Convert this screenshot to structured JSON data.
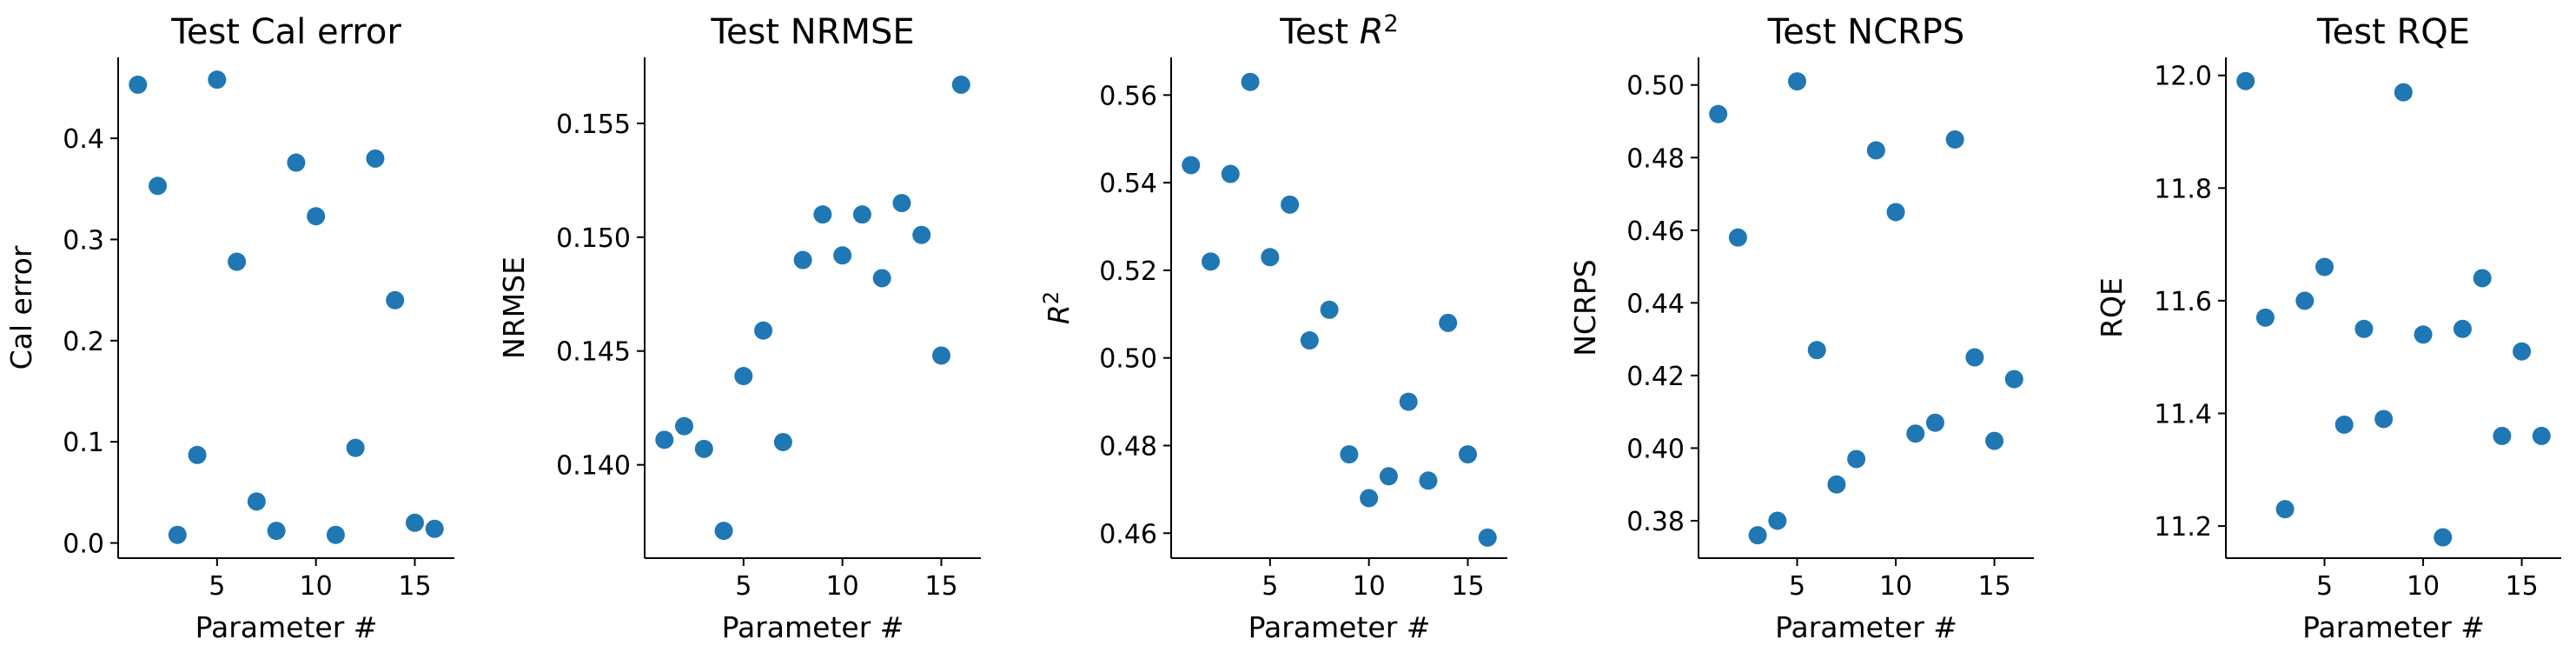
{
  "chart_data": [
    {
      "type": "scatter",
      "title": "Test Cal error",
      "xlabel": "Parameter #",
      "ylabel": "Cal error",
      "xlim": [
        0,
        17
      ],
      "ylim": [
        -0.015,
        0.48
      ],
      "xticks": [
        5,
        10,
        15
      ],
      "yticks": [
        0.0,
        0.1,
        0.2,
        0.3,
        0.4
      ],
      "ytick_labels": [
        "0.0",
        "0.1",
        "0.2",
        "0.3",
        "0.4"
      ],
      "series": [
        {
          "x": [
            1,
            2,
            3,
            4,
            5,
            6,
            7,
            8,
            9,
            10,
            11,
            12,
            13,
            14,
            15,
            16
          ],
          "y": [
            0.453,
            0.353,
            0.008,
            0.087,
            0.458,
            0.278,
            0.041,
            0.012,
            0.376,
            0.323,
            0.008,
            0.094,
            0.38,
            0.24,
            0.02,
            0.014
          ]
        }
      ]
    },
    {
      "type": "scatter",
      "title": "Test NRMSE",
      "xlabel": "Parameter #",
      "ylabel": "NRMSE",
      "xlim": [
        0,
        17
      ],
      "ylim": [
        0.1359,
        0.1579
      ],
      "xticks": [
        5,
        10,
        15
      ],
      "yticks": [
        0.14,
        0.145,
        0.15,
        0.155
      ],
      "ytick_labels": [
        "0.140",
        "0.145",
        "0.150",
        "0.155"
      ],
      "series": [
        {
          "x": [
            1,
            2,
            3,
            4,
            5,
            6,
            7,
            8,
            9,
            10,
            11,
            12,
            13,
            14,
            15,
            16
          ],
          "y": [
            0.1411,
            0.1417,
            0.1407,
            0.1371,
            0.1439,
            0.1459,
            0.141,
            0.149,
            0.151,
            0.1492,
            0.151,
            0.1482,
            0.1515,
            0.1501,
            0.1448,
            0.1567
          ]
        }
      ]
    },
    {
      "type": "scatter",
      "title": "Test R2",
      "xlabel": "Parameter #",
      "ylabel": "R2",
      "xlim": [
        0,
        17
      ],
      "ylim": [
        0.4543,
        0.5686
      ],
      "xticks": [
        5,
        10,
        15
      ],
      "yticks": [
        0.46,
        0.48,
        0.5,
        0.52,
        0.54,
        0.56
      ],
      "ytick_labels": [
        "0.46",
        "0.48",
        "0.50",
        "0.52",
        "0.54",
        "0.56"
      ],
      "series": [
        {
          "x": [
            1,
            2,
            3,
            4,
            5,
            6,
            7,
            8,
            9,
            10,
            11,
            12,
            13,
            14,
            15,
            16
          ],
          "y": [
            0.544,
            0.522,
            0.542,
            0.563,
            0.523,
            0.535,
            0.504,
            0.511,
            0.478,
            0.468,
            0.473,
            0.49,
            0.472,
            0.508,
            0.478,
            0.459
          ]
        }
      ]
    },
    {
      "type": "scatter",
      "title": "Test NCRPS",
      "xlabel": "Parameter #",
      "ylabel": "NCRPS",
      "xlim": [
        0,
        17
      ],
      "ylim": [
        0.3697,
        0.5076
      ],
      "xticks": [
        5,
        10,
        15
      ],
      "yticks": [
        0.38,
        0.4,
        0.42,
        0.44,
        0.46,
        0.48,
        0.5
      ],
      "ytick_labels": [
        "0.38",
        "0.40",
        "0.42",
        "0.44",
        "0.46",
        "0.48",
        "0.50"
      ],
      "series": [
        {
          "x": [
            1,
            2,
            3,
            4,
            5,
            6,
            7,
            8,
            9,
            10,
            11,
            12,
            13,
            14,
            15,
            16
          ],
          "y": [
            0.492,
            0.458,
            0.376,
            0.38,
            0.501,
            0.427,
            0.39,
            0.397,
            0.482,
            0.465,
            0.404,
            0.407,
            0.485,
            0.425,
            0.402,
            0.419
          ]
        }
      ]
    },
    {
      "type": "scatter",
      "title": "Test RQE",
      "xlabel": "Parameter #",
      "ylabel": "RQE",
      "xlim": [
        0,
        17
      ],
      "ylim": [
        11.143,
        12.032
      ],
      "xticks": [
        5,
        10,
        15
      ],
      "yticks": [
        11.2,
        11.4,
        11.6,
        11.8,
        12.0
      ],
      "ytick_labels": [
        "11.2",
        "11.4",
        "11.6",
        "11.8",
        "12.0"
      ],
      "series": [
        {
          "x": [
            1,
            2,
            3,
            4,
            5,
            6,
            7,
            8,
            9,
            10,
            11,
            12,
            13,
            14,
            15,
            16
          ],
          "y": [
            11.99,
            11.57,
            11.23,
            11.6,
            11.66,
            11.38,
            11.55,
            11.39,
            11.97,
            11.54,
            11.18,
            11.55,
            11.64,
            11.36,
            11.51,
            11.36
          ]
        }
      ]
    }
  ],
  "colors": {
    "marker": "#1f77b4",
    "axis": "#000000"
  }
}
